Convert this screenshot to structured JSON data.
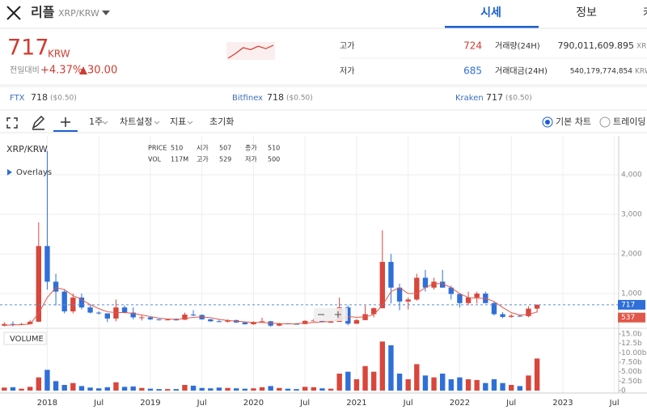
{
  "header": {
    "name": "리플",
    "pair": "XRP/KRW",
    "tabs": [
      "시세",
      "정보",
      "커"
    ]
  },
  "ticker": {
    "price": "717",
    "currency": "KRW",
    "change_label": "전일대비",
    "change_pct": "+4.37%",
    "change_abs": "▲30.00",
    "high_label": "고가",
    "high": "724",
    "low_label": "저가",
    "low": "685",
    "volume_label": "거래량(24H)",
    "volume": "790,011,609.895",
    "volume_unit": "XRP",
    "value_label": "거래대금(24H)",
    "value": "540,179,774,854",
    "value_unit": "KRW",
    "sparkline": [
      690,
      700,
      712,
      708,
      715,
      710,
      717
    ]
  },
  "exchanges": [
    {
      "name": "FTX",
      "price": "718",
      "usd": "($0.50)"
    },
    {
      "name": "Bitfinex",
      "price": "718",
      "usd": "($0.50)"
    },
    {
      "name": "Kraken",
      "price": "717",
      "usd": "($0.50)"
    }
  ],
  "toolbar": {
    "interval": "1주",
    "settings": "차트설정",
    "indicators": "지표",
    "reset": "초기화",
    "basic": "기본 차트",
    "trading": "트레이딩"
  },
  "chart_data": {
    "type": "candlestick",
    "pair_label": "XRP/KRW",
    "overlays": "Overlays",
    "volume_label": "VOLUME",
    "info": {
      "labels": [
        "PRICE",
        "시가",
        "종가",
        "VOL",
        "고가",
        "저가"
      ],
      "values": [
        "510",
        "507",
        "510",
        "117M",
        "529",
        "500"
      ]
    },
    "categories": [
      null,
      null,
      null,
      null,
      null,
      "2018",
      null,
      null,
      null,
      null,
      null,
      "Jul",
      null,
      null,
      null,
      null,
      null,
      "2019",
      null,
      null,
      null,
      null,
      null,
      "Jul",
      null,
      null,
      null,
      null,
      null,
      "2020",
      null,
      null,
      null,
      null,
      null,
      "Jul",
      null,
      null,
      null,
      null,
      null,
      "2021",
      null,
      null,
      null,
      null,
      null,
      "Jul",
      null,
      null,
      null,
      null,
      null,
      "2022",
      null,
      null,
      null,
      null,
      null,
      "Jul",
      null,
      null,
      null,
      null,
      null,
      "2023",
      null,
      null,
      null,
      null,
      null,
      "Jul"
    ],
    "open": [
      190,
      230,
      220,
      230,
      290,
      2200,
      1300,
      1050,
      550,
      900,
      650,
      520,
      500,
      370,
      650,
      520,
      400,
      400,
      350,
      340,
      345,
      340,
      470,
      460,
      350,
      300,
      290,
      330,
      270,
      225,
      280,
      300,
      190,
      250,
      235,
      230,
      310,
      320,
      285,
      285,
      650,
      240,
      330,
      480,
      630,
      1800,
      1150,
      800,
      850,
      1400,
      1150,
      1300,
      1150,
      990,
      760,
      900,
      1000,
      760,
      480,
      410,
      440,
      430,
      620,
      null,
      null,
      null,
      null,
      null,
      null,
      null,
      null,
      null
    ],
    "high": [
      280,
      300,
      260,
      330,
      2800,
      4600,
      1500,
      1100,
      1000,
      1000,
      700,
      550,
      500,
      850,
      700,
      650,
      450,
      420,
      360,
      360,
      380,
      520,
      580,
      470,
      360,
      340,
      350,
      340,
      280,
      300,
      390,
      310,
      260,
      250,
      250,
      330,
      360,
      330,
      300,
      900,
      700,
      360,
      700,
      650,
      2600,
      2000,
      1250,
      900,
      1500,
      1600,
      1400,
      1600,
      1200,
      1000,
      1050,
      1050,
      1050,
      800,
      530,
      480,
      470,
      680,
      730,
      null,
      null,
      null,
      null,
      null,
      null,
      null,
      null,
      null
    ],
    "low": [
      170,
      170,
      200,
      220,
      280,
      1100,
      700,
      500,
      500,
      600,
      500,
      470,
      280,
      300,
      500,
      350,
      320,
      330,
      320,
      330,
      320,
      330,
      430,
      340,
      290,
      280,
      270,
      260,
      220,
      215,
      280,
      160,
      180,
      220,
      220,
      225,
      300,
      270,
      270,
      280,
      200,
      230,
      330,
      400,
      630,
      750,
      580,
      600,
      820,
      1050,
      1100,
      1150,
      850,
      650,
      700,
      750,
      750,
      450,
      380,
      390,
      410,
      400,
      520,
      null,
      null,
      null,
      null,
      null,
      null,
      null,
      null,
      null
    ],
    "close": [
      230,
      220,
      230,
      290,
      2200,
      1300,
      1050,
      550,
      900,
      650,
      520,
      500,
      370,
      650,
      520,
      400,
      400,
      350,
      340,
      345,
      340,
      470,
      460,
      350,
      300,
      290,
      330,
      270,
      225,
      280,
      300,
      190,
      250,
      235,
      230,
      310,
      320,
      285,
      285,
      650,
      240,
      330,
      480,
      630,
      1800,
      1150,
      800,
      850,
      1400,
      1150,
      1300,
      1150,
      990,
      760,
      900,
      1000,
      760,
      480,
      410,
      440,
      430,
      620,
      717,
      null,
      null,
      null,
      null,
      null,
      null,
      null,
      null,
      null
    ],
    "ma": [
      200,
      210,
      215,
      230,
      500,
      900,
      1150,
      1100,
      950,
      850,
      720,
      620,
      540,
      520,
      520,
      500,
      460,
      420,
      380,
      360,
      350,
      370,
      400,
      410,
      390,
      350,
      320,
      305,
      285,
      270,
      270,
      255,
      240,
      235,
      240,
      255,
      270,
      285,
      290,
      350,
      420,
      400,
      410,
      470,
      700,
      1050,
      1150,
      1000,
      1000,
      1150,
      1250,
      1250,
      1150,
      1000,
      900,
      880,
      880,
      800,
      650,
      520,
      460,
      470,
      537,
      null,
      null,
      null,
      null,
      null,
      null,
      null,
      null,
      null
    ],
    "volume": [
      0.8,
      0.9,
      0.5,
      1.0,
      3.5,
      5.5,
      2.5,
      1.5,
      2.0,
      1.2,
      0.8,
      0.6,
      0.9,
      2.2,
      1.0,
      1.1,
      0.7,
      0.5,
      0.4,
      0.4,
      0.4,
      1.5,
      1.3,
      0.7,
      0.6,
      0.8,
      0.7,
      0.6,
      0.5,
      0.6,
      0.9,
      1.2,
      0.7,
      0.5,
      0.4,
      1.0,
      0.9,
      0.6,
      0.5,
      4.5,
      5.0,
      3.0,
      6.5,
      5.0,
      13.0,
      12.0,
      4.5,
      3.0,
      7.0,
      4.0,
      3.5,
      4.5,
      3.0,
      3.5,
      3.0,
      2.8,
      2.0,
      3.0,
      2.0,
      1.5,
      1.2,
      4.0,
      8.5,
      null,
      null,
      null,
      null,
      null,
      null,
      null,
      null,
      null
    ],
    "ylim": [
      0,
      4800
    ],
    "yticks": [
      {
        "value": 1000,
        "label": "1,000"
      },
      {
        "value": 2000,
        "label": "2,000"
      },
      {
        "value": 3000,
        "label": "3,000"
      },
      {
        "value": 4000,
        "label": "4,000"
      }
    ],
    "y2lim": [
      0,
      15
    ],
    "y2ticks": [
      0,
      {
        "value": 2.5,
        "label": "2.50b"
      },
      {
        "value": 5,
        "label": "5.00b"
      },
      {
        "value": 7.5,
        "label": "7.50b"
      },
      {
        "value": 10,
        "label": "10.00b"
      },
      {
        "value": 12.5,
        "label": "12.5b"
      },
      {
        "value": 15,
        "label": "15.0b"
      }
    ],
    "up_color": "#d9463c",
    "down_color": "#2f6fd8",
    "ma_color": "#e0584a",
    "grid": true
  }
}
